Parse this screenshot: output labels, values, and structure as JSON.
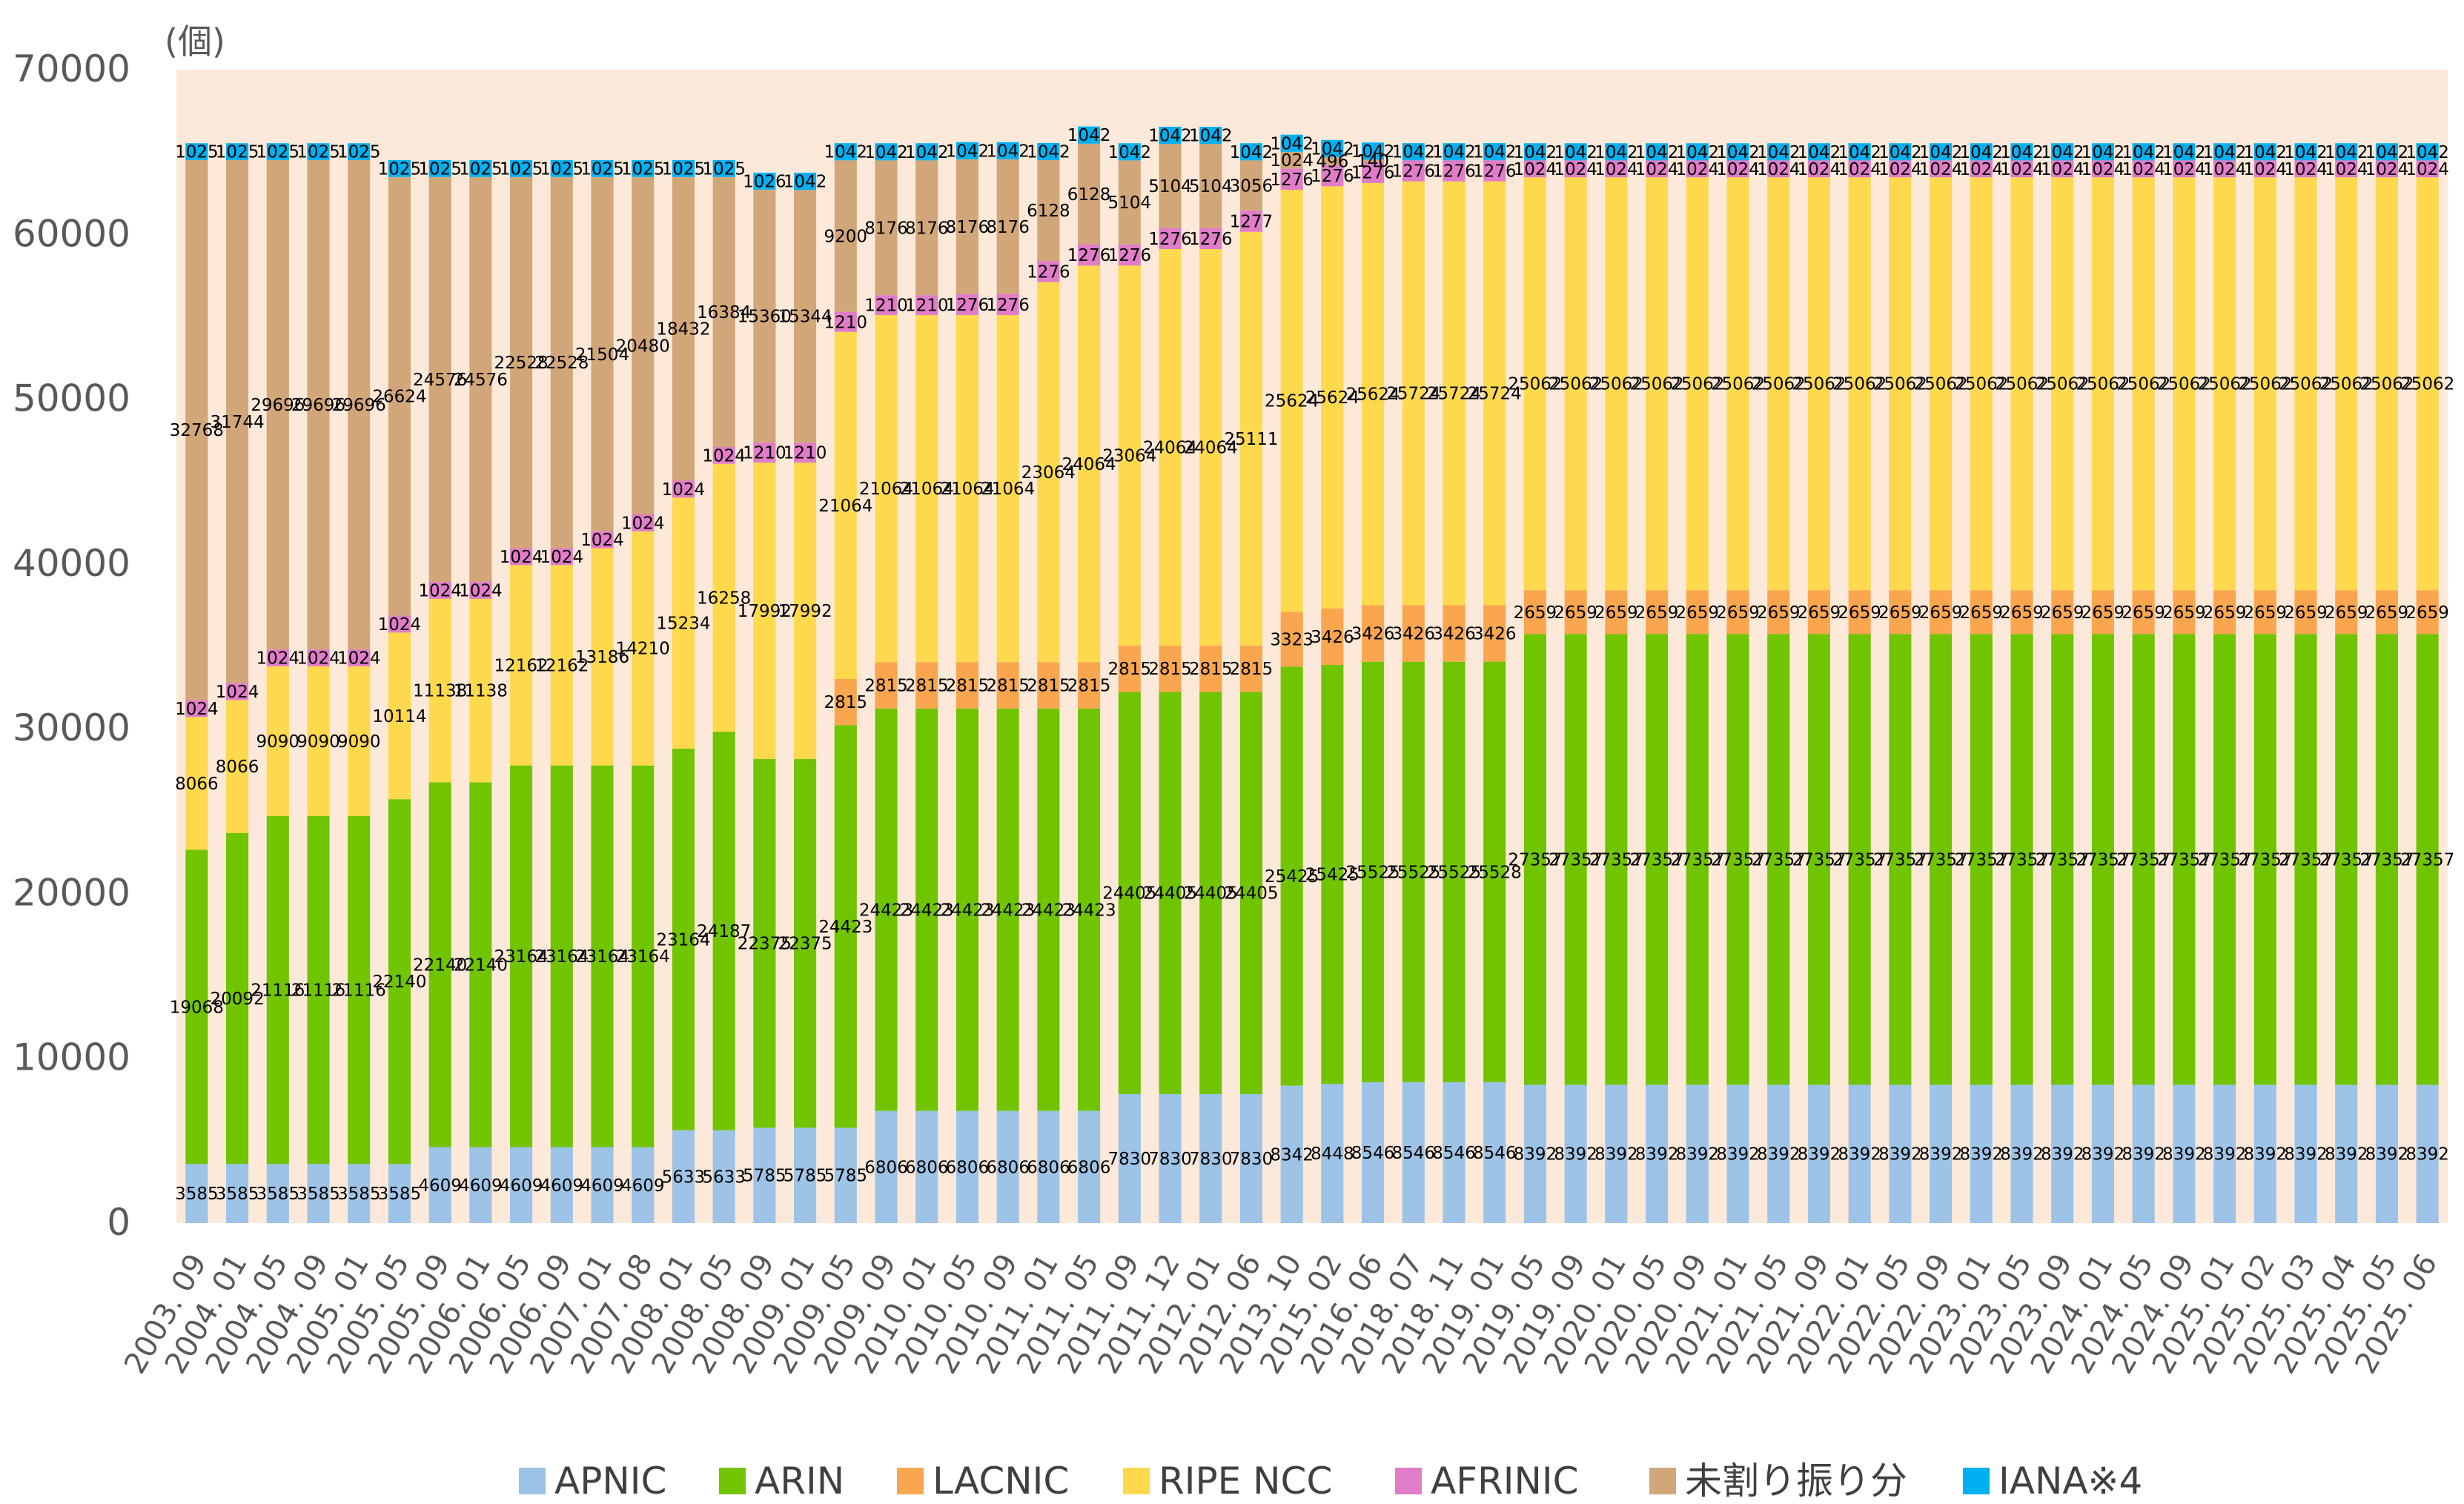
{
  "chart_data": {
    "type": "bar",
    "stacked": true,
    "unit_label": "(個)",
    "ylim": [
      0,
      70000
    ],
    "yticks": [
      "0",
      "10000",
      "20000",
      "30000",
      "40000",
      "50000",
      "60000",
      "70000"
    ],
    "grid": false,
    "legend_position": "bottom",
    "categories": [
      "2003. 09",
      "2004. 01",
      "2004. 05",
      "2004. 09",
      "2005. 01",
      "2005. 05",
      "2005. 09",
      "2006. 01",
      "2006. 05",
      "2006. 09",
      "2007. 01",
      "2007. 08",
      "2008. 01",
      "2008. 05",
      "2008. 09",
      "2009. 01",
      "2009. 05",
      "2009. 09",
      "2010. 01",
      "2010. 05",
      "2010. 09",
      "2011. 01",
      "2011. 05",
      "2011. 09",
      "2011. 12",
      "2012. 01",
      "2012. 06",
      "2013. 10",
      "2015. 02",
      "2016. 06",
      "2018. 07",
      "2018. 11",
      "2019. 01",
      "2019. 05",
      "2019. 09",
      "2020. 01",
      "2020. 05",
      "2020. 09",
      "2021. 01",
      "2021. 05",
      "2021. 09",
      "2022. 01",
      "2022. 05",
      "2022. 09",
      "2023. 01",
      "2023. 05",
      "2023. 09",
      "2024. 01",
      "2024. 05",
      "2024. 09",
      "2025. 01",
      "2025. 02",
      "2025. 03",
      "2025. 04",
      "2025. 05",
      "2025. 06"
    ],
    "series": [
      {
        "name": "APNIC",
        "color": "#9dc3e6",
        "values": [
          3585,
          3585,
          3585,
          3585,
          3585,
          3585,
          4609,
          4609,
          4609,
          4609,
          4609,
          4609,
          5633,
          5633,
          5785,
          5785,
          5785,
          6806,
          6806,
          6806,
          6806,
          6806,
          6806,
          7830,
          7830,
          7830,
          7830,
          8342,
          8448,
          8546,
          8546,
          8546,
          8546,
          8392,
          8392,
          8392,
          8392,
          8392,
          8392,
          8392,
          8392,
          8392,
          8392,
          8392,
          8392,
          8392,
          8392,
          8392,
          8392,
          8392,
          8392,
          8392,
          8392,
          8392,
          8392,
          8392
        ]
      },
      {
        "name": "ARIN",
        "color": "#70c400",
        "values": [
          19068,
          20092,
          21116,
          21116,
          21116,
          22140,
          22140,
          22140,
          23164,
          23164,
          23164,
          23164,
          23164,
          24187,
          22375,
          22375,
          24423,
          24423,
          24423,
          24423,
          24423,
          24423,
          24423,
          24405,
          24405,
          24405,
          24405,
          25425,
          25425,
          25525,
          25525,
          25525,
          25528,
          27357,
          27357,
          27357,
          27357,
          27357,
          27357,
          27357,
          27357,
          27357,
          27357,
          27357,
          27357,
          27357,
          27357,
          27357,
          27357,
          27357,
          27357,
          27357,
          27357,
          27357,
          27357,
          27357
        ]
      },
      {
        "name": "LACNIC",
        "color": "#f9a64f",
        "values": [
          0,
          0,
          0,
          0,
          0,
          0,
          0,
          0,
          0,
          0,
          0,
          0,
          0,
          0,
          0,
          0,
          2815,
          2815,
          2815,
          2815,
          2815,
          2815,
          2815,
          2815,
          2815,
          2815,
          2815,
          3323,
          3426,
          3426,
          3426,
          3426,
          3426,
          2659,
          2659,
          2659,
          2659,
          2659,
          2659,
          2659,
          2659,
          2659,
          2659,
          2659,
          2659,
          2659,
          2659,
          2659,
          2659,
          2659,
          2659,
          2659,
          2659,
          2659,
          2659,
          2659
        ]
      },
      {
        "name": "RIPE NCC",
        "color": "#ffd94d",
        "values": [
          8066,
          8066,
          9090,
          9090,
          9090,
          10114,
          11138,
          11138,
          12162,
          12162,
          13186,
          14210,
          15234,
          16258,
          17992,
          17992,
          21064,
          21064,
          21064,
          21064,
          21064,
          23064,
          24064,
          23064,
          24064,
          24064,
          25111,
          25624,
          25624,
          25624,
          25724,
          25724,
          25724,
          25062,
          25062,
          25062,
          25062,
          25062,
          25062,
          25062,
          25062,
          25062,
          25062,
          25062,
          25062,
          25062,
          25062,
          25062,
          25062,
          25062,
          25062,
          25062,
          25062,
          25062,
          25062,
          25062
        ]
      },
      {
        "name": "AFRINIC",
        "color": "#e17cc8",
        "values": [
          1024,
          1024,
          1024,
          1024,
          1024,
          1024,
          1024,
          1024,
          1024,
          1024,
          1024,
          1024,
          1024,
          1024,
          1210,
          1210,
          1210,
          1210,
          1210,
          1276,
          1276,
          1276,
          1276,
          1276,
          1276,
          1276,
          1277,
          1276,
          1276,
          1276,
          1276,
          1276,
          1276,
          1024,
          1024,
          1024,
          1024,
          1024,
          1024,
          1024,
          1024,
          1024,
          1024,
          1024,
          1024,
          1024,
          1024,
          1024,
          1024,
          1024,
          1024,
          1024,
          1024,
          1024,
          1024,
          1024
        ]
      },
      {
        "name": "未割り振り分",
        "color": "#d1a679",
        "values": [
          32768,
          31744,
          29696,
          29696,
          29696,
          26624,
          24576,
          24576,
          22528,
          22528,
          21504,
          20480,
          18432,
          16384,
          15360,
          15344,
          9200,
          8176,
          8176,
          8176,
          8176,
          6128,
          6128,
          5104,
          5104,
          5104,
          3056,
          1024,
          496,
          140,
          0,
          0,
          0,
          0,
          0,
          0,
          0,
          0,
          0,
          0,
          0,
          0,
          0,
          0,
          0,
          0,
          0,
          0,
          0,
          0,
          0,
          0,
          0,
          0,
          0,
          0
        ]
      },
      {
        "name": "IANA※4",
        "color": "#00b0f0",
        "values": [
          1025,
          1025,
          1025,
          1025,
          1025,
          1025,
          1025,
          1025,
          1025,
          1025,
          1025,
          1025,
          1025,
          1025,
          1026,
          1042,
          1042,
          1042,
          1042,
          1042,
          1042,
          1042,
          1042,
          1042,
          1042,
          1042,
          1042,
          1042,
          1042,
          1042,
          1042,
          1042,
          1042,
          1042,
          1042,
          1042,
          1042,
          1042,
          1042,
          1042,
          1042,
          1042,
          1042,
          1042,
          1042,
          1042,
          1042,
          1042,
          1042,
          1042,
          1042,
          1042,
          1042,
          1042,
          1042,
          1042
        ]
      }
    ],
    "background_fill": "#fde9d9"
  }
}
